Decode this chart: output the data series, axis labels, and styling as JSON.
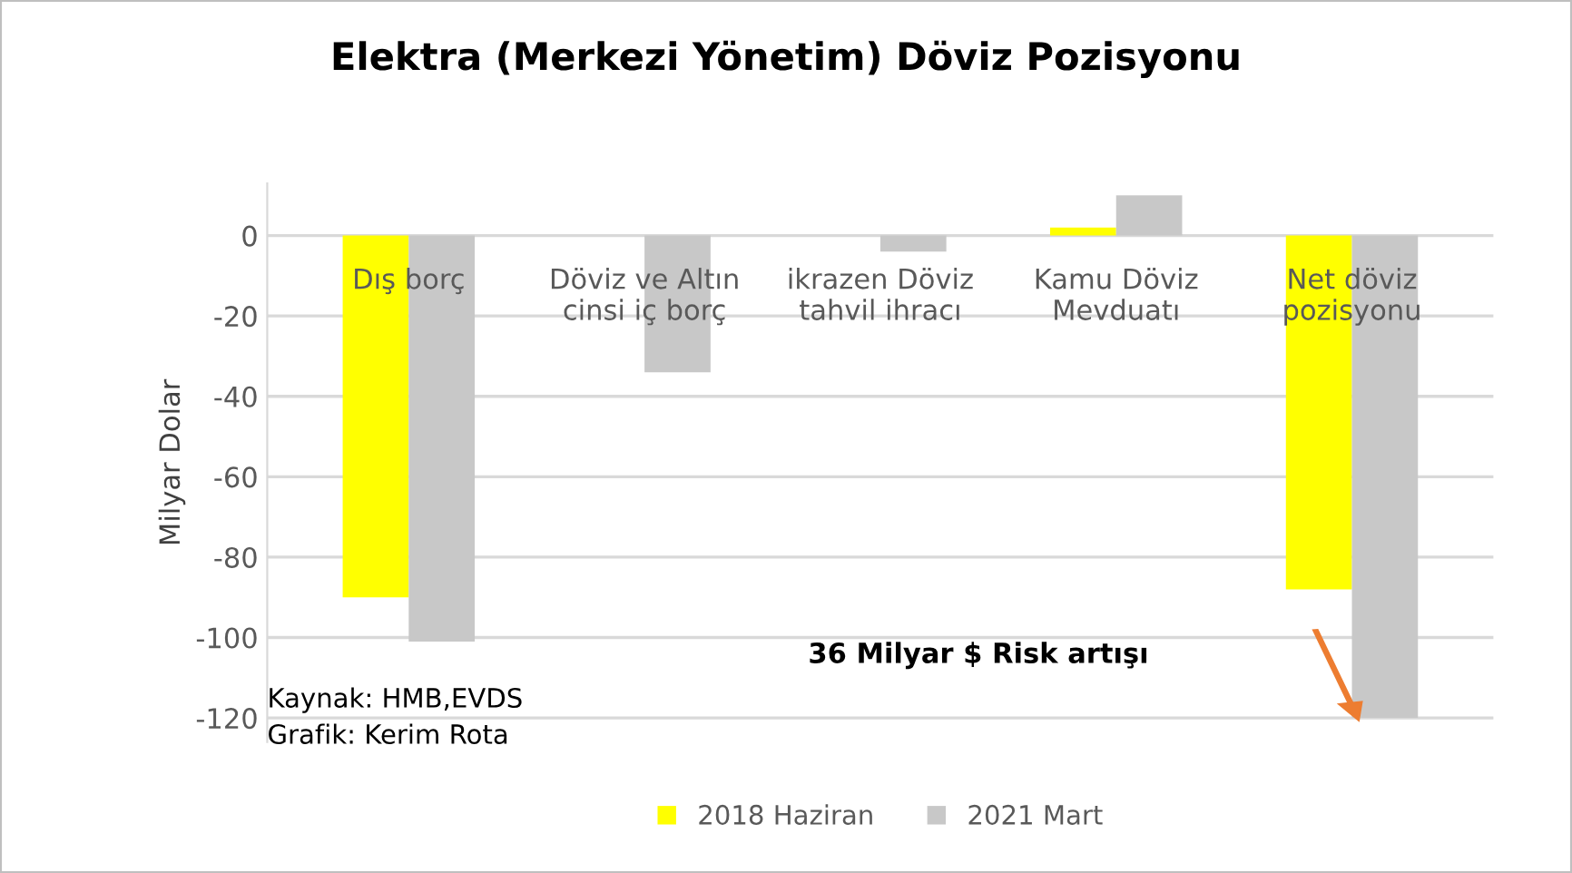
{
  "chart_data": {
    "type": "bar",
    "title": "Elektra (Merkezi Yönetim) Döviz Pozisyonu",
    "ylabel": "Milyar Dolar",
    "categories": [
      "Dış borç",
      "Döviz ve Altın\ncinsi iç borç",
      "ikrazen Döviz\ntahvil ihracı",
      "Kamu Döviz\nMevduatı",
      "Net döviz\npozisyonu"
    ],
    "series": [
      {
        "name": "2018 Haziran",
        "color": "#ffff00",
        "values": [
          -90,
          0,
          0,
          2,
          -88
        ]
      },
      {
        "name": "2021 Mart",
        "color": "#c8c8c8",
        "values": [
          -101,
          -34,
          -4,
          10,
          -120
        ]
      }
    ],
    "ylim": [
      -126,
      13
    ],
    "yticks": [
      0,
      -20,
      -40,
      -60,
      -80,
      -100,
      -120
    ],
    "grid": "y",
    "legend": "bottom",
    "tick_labels": "y",
    "annotations": [
      "36 Milyar $ Risk artışı",
      "Kaynak: HMB,EVDS",
      "Grafik: Kerim Rota"
    ]
  }
}
